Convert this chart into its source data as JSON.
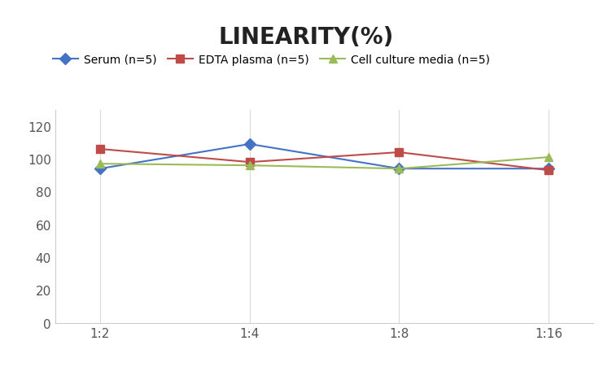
{
  "title": "LINEARITY(%)",
  "title_fontsize": 20,
  "title_fontweight": "bold",
  "x_labels": [
    "1:2",
    "1:4",
    "1:8",
    "1:16"
  ],
  "x_values": [
    0,
    1,
    2,
    3
  ],
  "series": [
    {
      "name": "Serum (n=5)",
      "values": [
        94,
        109,
        94,
        94
      ],
      "color": "#4472C4",
      "marker": "D",
      "marker_size": 7,
      "linewidth": 1.5
    },
    {
      "name": "EDTA plasma (n=5)",
      "values": [
        106,
        98,
        104,
        93
      ],
      "color": "#BE4B48",
      "marker": "s",
      "marker_size": 7,
      "linewidth": 1.5
    },
    {
      "name": "Cell culture media (n=5)",
      "values": [
        97,
        96,
        94,
        101
      ],
      "color": "#9BBB59",
      "marker": "^",
      "marker_size": 7,
      "linewidth": 1.5
    }
  ],
  "ylim": [
    0,
    130
  ],
  "yticks": [
    0,
    20,
    40,
    60,
    80,
    100,
    120
  ],
  "grid_color": "#D9D9D9",
  "spine_color": "#CCCCCC",
  "background_color": "#FFFFFF",
  "plot_bg_color": "#FFFFFF",
  "legend_fontsize": 10,
  "tick_fontsize": 11,
  "xlabel_fontsize": 11
}
